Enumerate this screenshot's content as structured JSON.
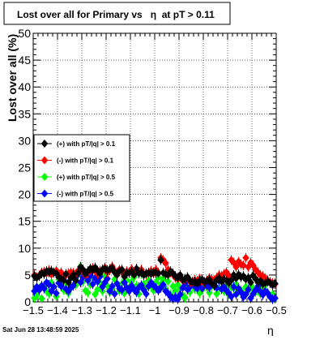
{
  "chart_data": {
    "type": "scatter",
    "title": "Lost over all for Primary vs   η  at pT > 0.11",
    "ylabel": "Lost over all (%)",
    "xlabel": "η",
    "xlim": [
      -1.5,
      -0.5
    ],
    "ylim": [
      0,
      50
    ],
    "x_ticks": [
      "−1.5",
      "−1.4",
      "−1.3",
      "−1.2",
      "−1.1",
      "−1",
      "−0.9",
      "−0.8",
      "−0.7",
      "−0.6",
      "−0.5"
    ],
    "y_ticks": [
      "0",
      "5",
      "10",
      "15",
      "20",
      "25",
      "30",
      "35",
      "40",
      "45",
      "50"
    ],
    "grid": true,
    "legend_position": "upper-left",
    "footer": "Sat Jun 28 13:48:59 2025",
    "series": [
      {
        "name": "(+) with pT/|q| > 0.1",
        "color": "#000000",
        "x": [
          -1.495,
          -1.485,
          -1.475,
          -1.465,
          -1.455,
          -1.445,
          -1.435,
          -1.425,
          -1.415,
          -1.405,
          -1.395,
          -1.385,
          -1.375,
          -1.365,
          -1.355,
          -1.345,
          -1.335,
          -1.325,
          -1.315,
          -1.305,
          -1.295,
          -1.285,
          -1.275,
          -1.265,
          -1.255,
          -1.245,
          -1.235,
          -1.225,
          -1.215,
          -1.205,
          -1.195,
          -1.185,
          -1.175,
          -1.165,
          -1.155,
          -1.145,
          -1.135,
          -1.125,
          -1.115,
          -1.105,
          -1.095,
          -1.085,
          -1.075,
          -1.065,
          -1.055,
          -1.045,
          -1.035,
          -1.025,
          -1.015,
          -1.005,
          -0.995,
          -0.985,
          -0.975,
          -0.965,
          -0.955,
          -0.945,
          -0.935,
          -0.925,
          -0.915,
          -0.905,
          -0.895,
          -0.885,
          -0.875,
          -0.865,
          -0.855,
          -0.845,
          -0.835,
          -0.825,
          -0.815,
          -0.805,
          -0.795,
          -0.785,
          -0.775,
          -0.765,
          -0.755,
          -0.745,
          -0.735,
          -0.725,
          -0.715,
          -0.705,
          -0.695,
          -0.685,
          -0.675,
          -0.665,
          -0.655,
          -0.645,
          -0.635,
          -0.625,
          -0.615,
          -0.605,
          -0.595,
          -0.585,
          -0.575,
          -0.565,
          -0.555,
          -0.545,
          -0.535,
          -0.525,
          -0.515,
          -0.505
        ],
        "y": [
          4.8,
          4.5,
          4.8,
          5.3,
          5.2,
          5.7,
          5.5,
          5.8,
          5.5,
          5.3,
          4.6,
          4.3,
          4.0,
          5.2,
          3.6,
          4.5,
          5.0,
          4.0,
          5.4,
          6.5,
          6.0,
          5.2,
          5.7,
          6.2,
          5.9,
          6.4,
          5.8,
          5.3,
          6.0,
          6.2,
          5.9,
          6.1,
          6.3,
          5.5,
          5.0,
          5.8,
          6.0,
          4.7,
          5.3,
          5.4,
          5.6,
          5.0,
          6.2,
          5.3,
          5.5,
          5.0,
          5.3,
          5.4,
          5.2,
          5.5,
          5.4,
          5.3,
          7.8,
          5.4,
          5.1,
          5.0,
          5.7,
          5.3,
          4.8,
          4.5,
          5.0,
          4.1,
          4.3,
          4.6,
          4.0,
          3.6,
          3.8,
          3.4,
          3.9,
          4.2,
          3.7,
          3.9,
          4.1,
          3.4,
          3.0,
          4.1,
          4.4,
          3.8,
          4.2,
          4.0,
          3.5,
          4.0,
          5.0,
          4.4,
          5.1,
          4.6,
          4.8,
          4.2,
          4.5,
          3.6,
          4.9,
          4.3,
          3.7,
          3.9,
          3.3,
          3.5,
          3.8,
          3.5,
          3.1,
          3.4
        ]
      },
      {
        "name": "(-) with pT/|q| > 0.1",
        "color": "#ff0000",
        "x": [
          -1.495,
          -1.485,
          -1.475,
          -1.465,
          -1.455,
          -1.445,
          -1.435,
          -1.425,
          -1.415,
          -1.405,
          -1.395,
          -1.385,
          -1.375,
          -1.365,
          -1.355,
          -1.345,
          -1.335,
          -1.325,
          -1.315,
          -1.305,
          -1.295,
          -1.285,
          -1.275,
          -1.265,
          -1.255,
          -1.245,
          -1.235,
          -1.225,
          -1.215,
          -1.205,
          -1.195,
          -1.185,
          -1.175,
          -1.165,
          -1.155,
          -1.145,
          -1.135,
          -1.125,
          -1.115,
          -1.105,
          -1.095,
          -1.085,
          -1.075,
          -1.065,
          -1.055,
          -1.045,
          -1.035,
          -1.025,
          -1.015,
          -1.005,
          -0.995,
          -0.985,
          -0.975,
          -0.965,
          -0.955,
          -0.945,
          -0.935,
          -0.925,
          -0.915,
          -0.905,
          -0.895,
          -0.885,
          -0.875,
          -0.865,
          -0.855,
          -0.845,
          -0.835,
          -0.825,
          -0.815,
          -0.805,
          -0.795,
          -0.785,
          -0.775,
          -0.765,
          -0.755,
          -0.745,
          -0.735,
          -0.725,
          -0.715,
          -0.705,
          -0.695,
          -0.685,
          -0.675,
          -0.665,
          -0.655,
          -0.645,
          -0.635,
          -0.625,
          -0.615,
          -0.605,
          -0.595,
          -0.585,
          -0.575,
          -0.565,
          -0.555,
          -0.545,
          -0.535,
          -0.525,
          -0.515,
          -0.505
        ],
        "y": [
          5.0,
          4.6,
          4.9,
          5.5,
          5.6,
          5.3,
          5.9,
          5.1,
          5.4,
          5.8,
          5.2,
          5.5,
          4.8,
          5.0,
          5.3,
          5.5,
          5.4,
          5.2,
          5.8,
          6.1,
          5.6,
          5.0,
          5.4,
          5.9,
          6.3,
          5.7,
          5.2,
          5.8,
          6.0,
          6.4,
          5.5,
          5.9,
          6.6,
          5.8,
          5.4,
          6.0,
          5.6,
          5.1,
          5.7,
          5.5,
          6.1,
          5.3,
          5.9,
          5.6,
          6.0,
          5.2,
          5.1,
          5.5,
          5.8,
          5.3,
          6.0,
          5.4,
          8.2,
          7.8,
          7.2,
          6.0,
          5.5,
          5.1,
          4.5,
          4.3,
          4.6,
          4.0,
          4.2,
          4.5,
          3.8,
          3.5,
          4.1,
          3.9,
          4.3,
          3.7,
          3.6,
          4.0,
          4.4,
          4.2,
          4.0,
          4.5,
          5.0,
          4.8,
          5.2,
          5.5,
          4.9,
          7.8,
          7.3,
          6.5,
          7.5,
          7.0,
          6.8,
          8.2,
          6.5,
          7.3,
          6.8,
          6.0,
          5.5,
          5.0,
          4.8,
          4.4,
          4.0,
          3.7,
          3.5,
          3.3
        ]
      },
      {
        "name": "(+) with pT/|q| > 0.5",
        "color": "#00ff00",
        "x": [
          -1.495,
          -1.485,
          -1.475,
          -1.465,
          -1.455,
          -1.445,
          -1.435,
          -1.425,
          -1.415,
          -1.405,
          -1.395,
          -1.385,
          -1.375,
          -1.365,
          -1.355,
          -1.345,
          -1.335,
          -1.325,
          -1.315,
          -1.305,
          -1.295,
          -1.285,
          -1.275,
          -1.265,
          -1.255,
          -1.245,
          -1.235,
          -1.225,
          -1.215,
          -1.205,
          -1.195,
          -1.185,
          -1.175,
          -1.165,
          -1.155,
          -1.145,
          -1.135,
          -1.125,
          -1.115,
          -1.105,
          -1.095,
          -1.085,
          -1.075,
          -1.065,
          -1.055,
          -1.045,
          -1.035,
          -1.025,
          -1.015,
          -1.005,
          -0.995,
          -0.985,
          -0.975,
          -0.965,
          -0.955,
          -0.945,
          -0.935,
          -0.925,
          -0.915,
          -0.905,
          -0.895,
          -0.885,
          -0.875,
          -0.865,
          -0.855,
          -0.845,
          -0.835,
          -0.825,
          -0.815,
          -0.805,
          -0.795,
          -0.785,
          -0.775,
          -0.765,
          -0.755,
          -0.745,
          -0.735,
          -0.725,
          -0.715,
          -0.705,
          -0.695,
          -0.685,
          -0.675,
          -0.665,
          -0.655,
          -0.645,
          -0.635,
          -0.625,
          -0.615,
          -0.605,
          -0.595,
          -0.585,
          -0.575,
          -0.565,
          -0.555,
          -0.545,
          -0.535,
          -0.525,
          -0.515,
          -0.505
        ],
        "y": [
          0.7,
          1.2,
          2.5,
          0.6,
          3.0,
          2.0,
          1.5,
          3.6,
          2.8,
          1.0,
          4.2,
          3.0,
          2.2,
          3.5,
          1.6,
          2.6,
          4.4,
          3.1,
          5.0,
          6.6,
          3.8,
          2.1,
          1.7,
          3.2,
          4.5,
          1.4,
          2.3,
          3.6,
          2.0,
          4.8,
          3.0,
          1.8,
          2.5,
          4.2,
          5.3,
          2.0,
          3.4,
          1.6,
          4.0,
          2.7,
          3.8,
          4.6,
          3.0,
          1.5,
          5.2,
          3.4,
          2.6,
          4.0,
          3.0,
          2.1,
          3.6,
          4.6,
          3.3,
          4.2,
          2.5,
          3.8,
          1.4,
          2.9,
          2.0,
          3.2,
          2.5,
          1.2,
          0.8,
          2.6,
          1.8,
          3.6,
          2.4,
          3.0,
          1.6,
          2.2,
          3.3,
          2.8,
          1.7,
          2.9,
          3.4,
          1.5,
          2.6,
          3.9,
          2.0,
          3.0,
          1.4,
          2.7,
          2.5,
          3.3,
          1.9,
          2.2,
          1.6,
          2.8,
          2.1,
          3.0,
          2.4,
          1.8,
          2.6,
          1.5,
          2.8,
          3.1,
          1.7,
          0.9,
          1.4,
          0.6
        ]
      },
      {
        "name": "(-) with pT/|q| > 0.5",
        "color": "#0000ff",
        "x": [
          -1.495,
          -1.485,
          -1.475,
          -1.465,
          -1.455,
          -1.445,
          -1.435,
          -1.425,
          -1.415,
          -1.405,
          -1.395,
          -1.385,
          -1.375,
          -1.365,
          -1.355,
          -1.345,
          -1.335,
          -1.325,
          -1.315,
          -1.305,
          -1.295,
          -1.285,
          -1.275,
          -1.265,
          -1.255,
          -1.245,
          -1.235,
          -1.225,
          -1.215,
          -1.205,
          -1.195,
          -1.185,
          -1.175,
          -1.165,
          -1.155,
          -1.145,
          -1.135,
          -1.125,
          -1.115,
          -1.105,
          -1.095,
          -1.085,
          -1.075,
          -1.065,
          -1.055,
          -1.045,
          -1.035,
          -1.025,
          -1.015,
          -1.005,
          -0.995,
          -0.985,
          -0.975,
          -0.965,
          -0.955,
          -0.945,
          -0.935,
          -0.925,
          -0.915,
          -0.905,
          -0.895,
          -0.885,
          -0.875,
          -0.865,
          -0.855,
          -0.845,
          -0.835,
          -0.825,
          -0.815,
          -0.805,
          -0.795,
          -0.785,
          -0.775,
          -0.765,
          -0.755,
          -0.745,
          -0.735,
          -0.725,
          -0.715,
          -0.705,
          -0.695,
          -0.685,
          -0.675,
          -0.665,
          -0.655,
          -0.645,
          -0.635,
          -0.625,
          -0.615,
          -0.605,
          -0.595,
          -0.585,
          -0.575,
          -0.565,
          -0.555,
          -0.545,
          -0.535,
          -0.525,
          -0.515,
          -0.505
        ],
        "y": [
          2.0,
          2.8,
          2.2,
          3.0,
          2.5,
          3.6,
          3.2,
          2.0,
          2.8,
          1.6,
          3.5,
          2.9,
          4.2,
          2.4,
          2.0,
          2.7,
          3.0,
          4.8,
          5.2,
          3.6,
          4.6,
          5.3,
          4.0,
          4.9,
          3.3,
          4.4,
          3.8,
          4.7,
          2.8,
          3.6,
          4.3,
          2.0,
          2.9,
          1.5,
          3.4,
          2.5,
          2.2,
          3.6,
          2.6,
          2.0,
          3.0,
          2.3,
          1.8,
          2.7,
          3.1,
          2.2,
          1.5,
          2.9,
          3.6,
          3.0,
          2.6,
          2.1,
          2.6,
          3.2,
          2.0,
          1.6,
          1.0,
          0.6,
          0.9,
          0.5,
          1.4,
          2.6,
          3.4,
          2.3,
          2.8,
          3.8,
          2.9,
          2.5,
          3.3,
          2.5,
          3.6,
          3.0,
          2.7,
          3.4,
          3.1,
          2.6,
          3.9,
          2.4,
          2.8,
          2.1,
          1.6,
          1.0,
          2.8,
          1.4,
          2.5,
          1.8,
          0.9,
          1.4,
          2.3,
          0.7,
          1.5,
          2.2,
          2.9,
          1.9,
          1.3,
          2.0,
          1.6,
          0.9,
          0.5,
          0.7
        ]
      }
    ]
  }
}
